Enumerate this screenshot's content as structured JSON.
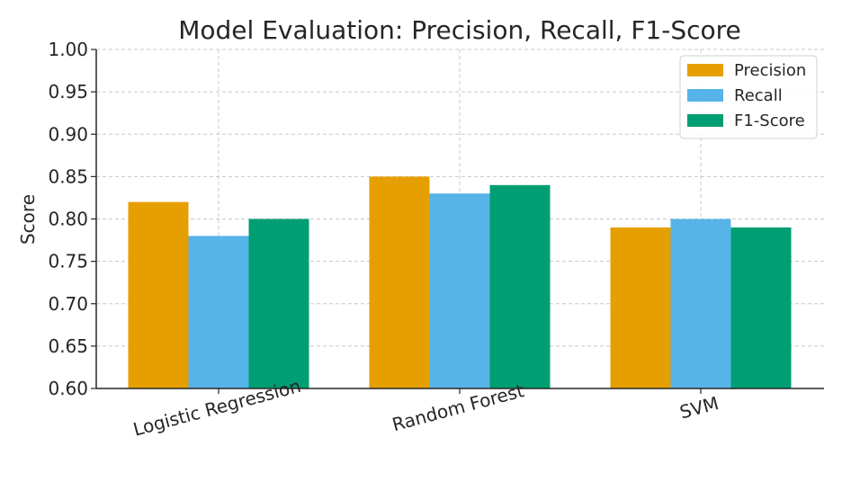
{
  "chart_data": {
    "type": "bar",
    "title": "Model Evaluation: Precision, Recall, F1-Score",
    "xlabel": "",
    "ylabel": "Score",
    "categories": [
      "Logistic Regression",
      "Random Forest",
      "SVM"
    ],
    "series": [
      {
        "name": "Precision",
        "color": "#E69F00",
        "values": [
          0.82,
          0.85,
          0.79
        ]
      },
      {
        "name": "Recall",
        "color": "#56B4E9",
        "values": [
          0.78,
          0.83,
          0.8
        ]
      },
      {
        "name": "F1-Score",
        "color": "#009E73",
        "values": [
          0.8,
          0.84,
          0.79
        ]
      }
    ],
    "ylim": [
      0.6,
      1.0
    ],
    "yticks": [
      "0.60",
      "0.65",
      "0.70",
      "0.75",
      "0.80",
      "0.85",
      "0.90",
      "0.95",
      "1.00"
    ],
    "grid": true,
    "legend_position": "top-right"
  }
}
